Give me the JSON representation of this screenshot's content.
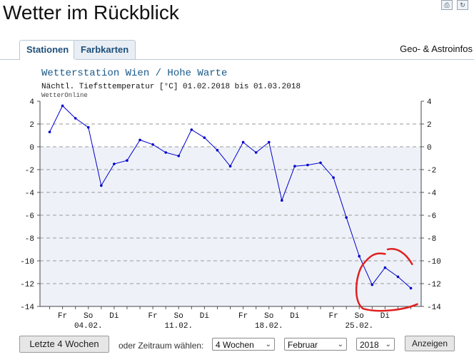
{
  "header": {
    "title": "Wetter im Rückblick",
    "icons": [
      "print-icon",
      "refresh-icon"
    ]
  },
  "tabs": [
    {
      "label": "Stationen",
      "active": true
    },
    {
      "label": "Farbkarten",
      "active": false
    }
  ],
  "tab_right": "Geo- & Astroinfos",
  "controls": {
    "last4_label": "Letzte 4 Wochen",
    "period_label": "oder Zeitraum wählen:",
    "period_value": "4 Wochen",
    "month_value": "Februar",
    "year_value": "2018",
    "show_label": "Anzeigen"
  },
  "chart_data": {
    "type": "line",
    "title": "Wetterstation Wien / Hohe Warte",
    "subtitle": "Nächtl. Tiefsttemperatur [°C] 01.02.2018 bis 01.03.2018",
    "source": "WetterOnline",
    "ylim": [
      -14,
      4
    ],
    "yticks": [
      4,
      2,
      0,
      -2,
      -4,
      -6,
      -8,
      -10,
      -12,
      -14
    ],
    "grid": true,
    "line_color": "#0000cc",
    "fill_below_zero": "#eef2f8",
    "highlight_color": "#e02020",
    "x_tick_labels": [
      {
        "day": 2,
        "label": "Fr"
      },
      {
        "day": 4,
        "label": "So"
      },
      {
        "day": 6,
        "label": "Di"
      },
      {
        "day": 9,
        "label": "Fr"
      },
      {
        "day": 11,
        "label": "So"
      },
      {
        "day": 13,
        "label": "Di"
      },
      {
        "day": 16,
        "label": "Fr"
      },
      {
        "day": 18,
        "label": "So"
      },
      {
        "day": 20,
        "label": "Di"
      },
      {
        "day": 23,
        "label": "Fr"
      },
      {
        "day": 25,
        "label": "So"
      },
      {
        "day": 27,
        "label": "Di"
      }
    ],
    "x_date_labels": [
      {
        "day": 4,
        "label": "04.02."
      },
      {
        "day": 11,
        "label": "11.02."
      },
      {
        "day": 18,
        "label": "18.02."
      },
      {
        "day": 25,
        "label": "25.02."
      }
    ],
    "days": [
      1,
      2,
      3,
      4,
      5,
      6,
      7,
      8,
      9,
      10,
      11,
      12,
      13,
      14,
      15,
      16,
      17,
      18,
      19,
      20,
      21,
      22,
      23,
      24,
      25,
      26,
      27,
      28,
      29
    ],
    "values": [
      1.3,
      3.6,
      2.5,
      1.7,
      -3.4,
      -1.5,
      -1.2,
      0.6,
      0.2,
      -0.5,
      -0.8,
      1.5,
      0.8,
      -0.3,
      -1.7,
      0.4,
      -0.5,
      0.4,
      -4.7,
      -1.7,
      -1.6,
      -1.4,
      -2.7,
      -6.2,
      -9.6,
      -12.1,
      -10.6,
      -11.4,
      -12.4
    ]
  }
}
